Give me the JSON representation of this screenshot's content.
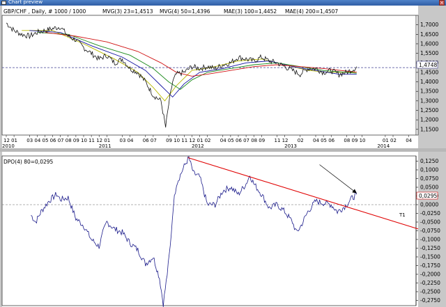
{
  "window": {
    "title": "Chart preview",
    "close_label": "×"
  },
  "chart_data": [
    {
      "type": "line",
      "panel": "price",
      "symbol_label": "GBP/CHF , Daily, # 1000 / 1000",
      "indicators": [
        {
          "name": "MVG(3) 23=1,4513",
          "color": "#b8b800"
        },
        {
          "name": "MVG(4) 50=1,4396",
          "color": "#1010a0"
        },
        {
          "name": "MAE(3) 100=1,4452",
          "color": "#1a8a1a"
        },
        {
          "name": "MAE(4) 200=1,4507",
          "color": "#d01010"
        }
      ],
      "last_value_label": "1,4748",
      "reference_level": 1.4748,
      "ylim": [
        1.12,
        1.75
      ],
      "y_ticks": [
        "1,7000",
        "1,6500",
        "1,6000",
        "1,5500",
        "1,5000",
        "1,4500",
        "1,4000",
        "1,3500",
        "1,3000",
        "1,2500",
        "1,2000",
        "1,1500"
      ],
      "y_tick_values": [
        1.7,
        1.65,
        1.6,
        1.55,
        1.5,
        1.45,
        1.4,
        1.35,
        1.3,
        1.25,
        1.2,
        1.15
      ],
      "x_month_labels": [
        "12",
        "01",
        "03",
        "04",
        "05",
        "06",
        "07",
        "08",
        "09",
        "10",
        "11",
        "12",
        "01",
        "03",
        "04",
        "06",
        "07",
        "09",
        "10",
        "11",
        "12",
        "01",
        "02",
        "04",
        "05",
        "06",
        "07",
        "08",
        "09",
        "11",
        "12",
        "02",
        "04",
        "05",
        "06",
        "08",
        "09",
        "10",
        "01",
        "02",
        "04"
      ],
      "x_month_index": [
        0,
        1,
        3,
        4,
        5,
        6,
        7,
        8,
        9,
        10,
        11,
        12,
        13,
        15,
        16,
        18,
        19,
        21,
        22,
        23,
        24,
        25,
        26,
        28,
        29,
        30,
        31,
        32,
        33,
        35,
        36,
        38,
        40,
        41,
        42,
        44,
        45,
        46,
        49,
        50,
        52
      ],
      "x_year_labels": [
        "2010",
        "2011",
        "2012",
        "2013",
        "2014"
      ],
      "x_year_index": [
        0,
        12.5,
        24.5,
        36.5,
        48.5
      ],
      "price_path": [
        [
          0,
          1.71
        ],
        [
          1,
          1.67
        ],
        [
          2,
          1.65
        ],
        [
          3,
          1.64
        ],
        [
          4,
          1.66
        ],
        [
          5,
          1.67
        ],
        [
          6,
          1.68
        ],
        [
          7,
          1.69
        ],
        [
          8,
          1.64
        ],
        [
          9,
          1.62
        ],
        [
          10,
          1.58
        ],
        [
          11,
          1.55
        ],
        [
          12,
          1.52
        ],
        [
          13,
          1.54
        ],
        [
          14,
          1.5
        ],
        [
          15,
          1.52
        ],
        [
          16,
          1.47
        ],
        [
          17,
          1.45
        ],
        [
          18,
          1.4
        ],
        [
          19,
          1.33
        ],
        [
          20,
          1.3
        ],
        [
          20.6,
          1.16
        ],
        [
          21,
          1.28
        ],
        [
          21.5,
          1.4
        ],
        [
          22,
          1.44
        ],
        [
          23,
          1.45
        ],
        [
          24,
          1.48
        ],
        [
          25,
          1.47
        ],
        [
          26,
          1.48
        ],
        [
          27,
          1.47
        ],
        [
          28,
          1.49
        ],
        [
          29,
          1.5
        ],
        [
          30,
          1.53
        ],
        [
          31,
          1.52
        ],
        [
          32,
          1.51
        ],
        [
          33,
          1.53
        ],
        [
          34,
          1.51
        ],
        [
          35,
          1.5
        ],
        [
          36,
          1.48
        ],
        [
          37,
          1.46
        ],
        [
          38,
          1.44
        ],
        [
          39,
          1.47
        ],
        [
          40,
          1.47
        ],
        [
          41,
          1.45
        ],
        [
          42,
          1.46
        ],
        [
          43,
          1.44
        ],
        [
          44,
          1.45
        ],
        [
          45,
          1.47
        ],
        [
          45.3,
          1.48
        ]
      ],
      "ma_paths": [
        {
          "color": "#b8b800",
          "points": [
            [
              2,
              1.67
            ],
            [
              6,
              1.67
            ],
            [
              10,
              1.6
            ],
            [
              14,
              1.52
            ],
            [
              17,
              1.45
            ],
            [
              19,
              1.37
            ],
            [
              20.5,
              1.3
            ],
            [
              22,
              1.38
            ],
            [
              24,
              1.46
            ],
            [
              27,
              1.48
            ],
            [
              30,
              1.51
            ],
            [
              33,
              1.52
            ],
            [
              36,
              1.49
            ],
            [
              39,
              1.46
            ],
            [
              42,
              1.45
            ],
            [
              45.3,
              1.451
            ]
          ]
        },
        {
          "color": "#1010a0",
          "points": [
            [
              3,
              1.67
            ],
            [
              7,
              1.66
            ],
            [
              11,
              1.59
            ],
            [
              15,
              1.53
            ],
            [
              18,
              1.46
            ],
            [
              20,
              1.38
            ],
            [
              21.5,
              1.32
            ],
            [
              23,
              1.39
            ],
            [
              25,
              1.45
            ],
            [
              28,
              1.47
            ],
            [
              31,
              1.5
            ],
            [
              34,
              1.51
            ],
            [
              37,
              1.48
            ],
            [
              40,
              1.46
            ],
            [
              43,
              1.44
            ],
            [
              45.3,
              1.4396
            ]
          ]
        },
        {
          "color": "#1a8a1a",
          "points": [
            [
              4,
              1.66
            ],
            [
              8,
              1.65
            ],
            [
              12,
              1.59
            ],
            [
              16,
              1.54
            ],
            [
              19,
              1.47
            ],
            [
              21,
              1.4
            ],
            [
              22.5,
              1.36
            ],
            [
              24,
              1.41
            ],
            [
              26,
              1.45
            ],
            [
              29,
              1.47
            ],
            [
              32,
              1.49
            ],
            [
              35,
              1.5
            ],
            [
              38,
              1.48
            ],
            [
              41,
              1.46
            ],
            [
              45.3,
              1.4452
            ]
          ]
        },
        {
          "color": "#d01010",
          "points": [
            [
              5,
              1.66
            ],
            [
              9,
              1.64
            ],
            [
              13,
              1.61
            ],
            [
              17,
              1.56
            ],
            [
              20,
              1.5
            ],
            [
              22,
              1.45
            ],
            [
              24,
              1.43
            ],
            [
              26,
              1.44
            ],
            [
              29,
              1.46
            ],
            [
              32,
              1.48
            ],
            [
              35,
              1.49
            ],
            [
              38,
              1.48
            ],
            [
              41,
              1.47
            ],
            [
              45.3,
              1.4507
            ]
          ]
        }
      ]
    },
    {
      "type": "line",
      "panel": "oscillator",
      "indicator_label": "DPO(4) 80=0,0295",
      "last_value_label": "0,0295",
      "trendline_label": "T1",
      "ylim": [
        -0.29,
        0.14
      ],
      "y_ticks": [
        "0,1250",
        "0,1000",
        "0,0750",
        "0,0500",
        "0,0250",
        "0,0000",
        "-0,0250",
        "-0,0500",
        "-0,0750",
        "-0,1000",
        "-0,1250",
        "-0,1500",
        "-0,1750",
        "-0,2000",
        "-0,2250",
        "-0,2500",
        "-0,2750"
      ],
      "y_tick_values": [
        0.125,
        0.1,
        0.075,
        0.05,
        0.025,
        0.0,
        -0.025,
        -0.05,
        -0.075,
        -0.1,
        -0.125,
        -0.15,
        -0.175,
        -0.2,
        -0.225,
        -0.25,
        -0.275
      ],
      "dpo_path": [
        [
          3.2,
          -0.03
        ],
        [
          3.8,
          -0.05
        ],
        [
          4.5,
          -0.02
        ],
        [
          5.5,
          0.01
        ],
        [
          6.5,
          0.03
        ],
        [
          7,
          0.015
        ],
        [
          8,
          0.02
        ],
        [
          9,
          -0.04
        ],
        [
          10,
          -0.06
        ],
        [
          11,
          -0.1
        ],
        [
          12,
          -0.12
        ],
        [
          12.5,
          -0.08
        ],
        [
          13,
          -0.05
        ],
        [
          14,
          -0.07
        ],
        [
          15,
          -0.08
        ],
        [
          16,
          -0.11
        ],
        [
          17,
          -0.13
        ],
        [
          18,
          -0.17
        ],
        [
          19,
          -0.15
        ],
        [
          19.8,
          -0.21
        ],
        [
          20.3,
          -0.285
        ],
        [
          20.8,
          -0.2
        ],
        [
          21.2,
          -0.12
        ],
        [
          21.6,
          0.0
        ],
        [
          22,
          0.06
        ],
        [
          23,
          0.11
        ],
        [
          23.6,
          0.135
        ],
        [
          24.2,
          0.09
        ],
        [
          25,
          0.08
        ],
        [
          25.5,
          0.04
        ],
        [
          26,
          0.0
        ],
        [
          27,
          0.0
        ],
        [
          28,
          0.04
        ],
        [
          29,
          0.05
        ],
        [
          30,
          0.03
        ],
        [
          31,
          0.06
        ],
        [
          31.5,
          0.085
        ],
        [
          32,
          0.06
        ],
        [
          33,
          0.03
        ],
        [
          34,
          -0.01
        ],
        [
          35,
          0.0
        ],
        [
          36,
          -0.02
        ],
        [
          37,
          -0.05
        ],
        [
          37.5,
          -0.08
        ],
        [
          38,
          -0.065
        ],
        [
          39,
          -0.02
        ],
        [
          40,
          0.01
        ],
        [
          41,
          0.005
        ],
        [
          42,
          0.0
        ],
        [
          42.8,
          -0.02
        ],
        [
          43.5,
          -0.01
        ],
        [
          44,
          0.0
        ],
        [
          44.5,
          0.015
        ],
        [
          45.3,
          0.0295
        ]
      ],
      "trendline": [
        [
          23.5,
          0.135
        ],
        [
          54,
          -0.075
        ]
      ],
      "arrow": [
        [
          40.5,
          0.115
        ],
        [
          45.3,
          0.033
        ]
      ]
    }
  ]
}
